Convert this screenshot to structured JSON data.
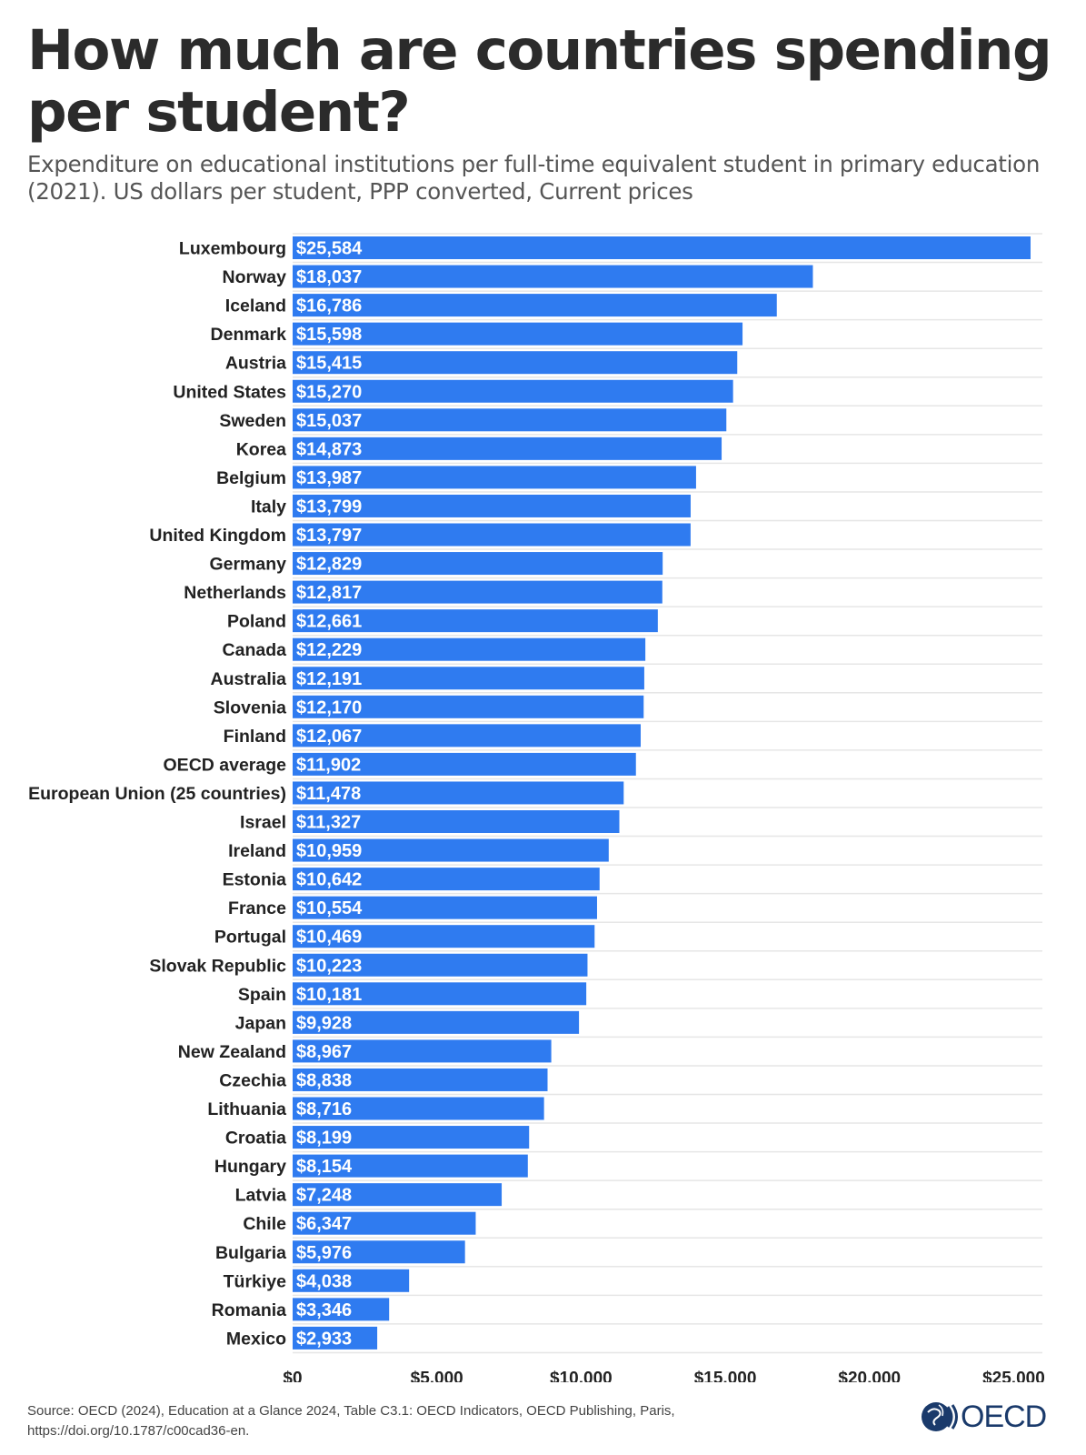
{
  "header": {
    "title": "How much are countries spending per student?",
    "subtitle": "Expenditure on educational institutions per full-time equivalent student in primary education (2021). US dollars per student, PPP converted, Current prices"
  },
  "footer": {
    "source_line1": "Source: OECD (2024), Education at a Glance 2024, Table C3.1: OECD Indicators, OECD Publishing, Paris,",
    "source_line2": "https://doi.org/10.1787/c00cad36-en.",
    "logo_text": "OECD"
  },
  "colors": {
    "bar": "#2f7bf0",
    "grid": "#e6e6e6",
    "logo": "#1a3a6b"
  },
  "chart_data": {
    "type": "bar",
    "orientation": "horizontal",
    "title": "How much are countries spending per student?",
    "subtitle": "Expenditure on educational institutions per full-time equivalent student in primary education (2021). US dollars per student, PPP converted, Current prices",
    "xlabel": "",
    "ylabel": "",
    "xlim": [
      0,
      26000
    ],
    "grid": true,
    "categories": [
      "Luxembourg",
      "Norway",
      "Iceland",
      "Denmark",
      "Austria",
      "United States",
      "Sweden",
      "Korea",
      "Belgium",
      "Italy",
      "United Kingdom",
      "Germany",
      "Netherlands",
      "Poland",
      "Canada",
      "Australia",
      "Slovenia",
      "Finland",
      "OECD average",
      "European Union (25 countries)",
      "Israel",
      "Ireland",
      "Estonia",
      "France",
      "Portugal",
      "Slovak Republic",
      "Spain",
      "Japan",
      "New Zealand",
      "Czechia",
      "Lithuania",
      "Croatia",
      "Hungary",
      "Latvia",
      "Chile",
      "Bulgaria",
      "Türkiye",
      "Romania",
      "Mexico"
    ],
    "values": [
      25584,
      18037,
      16786,
      15598,
      15415,
      15270,
      15037,
      14873,
      13987,
      13799,
      13797,
      12829,
      12817,
      12661,
      12229,
      12191,
      12170,
      12067,
      11902,
      11478,
      11327,
      10959,
      10642,
      10554,
      10469,
      10223,
      10181,
      9928,
      8967,
      8838,
      8716,
      8199,
      8154,
      7248,
      6347,
      5976,
      4038,
      3346,
      2933
    ],
    "data_labels": [
      "$25,584",
      "$18,037",
      "$16,786",
      "$15,598",
      "$15,415",
      "$15,270",
      "$15,037",
      "$14,873",
      "$13,987",
      "$13,799",
      "$13,797",
      "$12,829",
      "$12,817",
      "$12,661",
      "$12,229",
      "$12,191",
      "$12,170",
      "$12,067",
      "$11,902",
      "$11,478",
      "$11,327",
      "$10,959",
      "$10,642",
      "$10,554",
      "$10,469",
      "$10,223",
      "$10,181",
      "$9,928",
      "$8,967",
      "$8,838",
      "$8,716",
      "$8,199",
      "$8,154",
      "$7,248",
      "$6,347",
      "$5,976",
      "$4,038",
      "$3,346",
      "$2,933"
    ],
    "x_ticks": [
      0,
      5000,
      10000,
      15000,
      20000,
      25000
    ],
    "x_tick_labels": [
      "$0",
      "$5,000",
      "$10,000",
      "$15,000",
      "$20,000",
      "$25,000"
    ]
  }
}
